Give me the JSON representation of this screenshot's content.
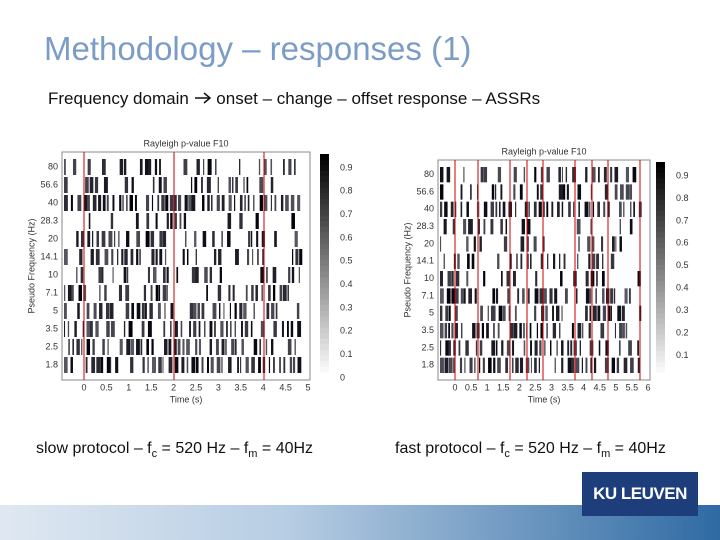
{
  "title": "Methodology – responses (1)",
  "subtitle": {
    "before": "Frequency domain",
    "after": "onset – change – offset response – ASSRs"
  },
  "figures": [
    {
      "title": "Rayleigh p-value F10",
      "ylabel": "Pseudo Frequency (Hz)",
      "xlabel": "Time (s)",
      "yticks": [
        "80",
        "56.6",
        "40",
        "28.3",
        "20",
        "14.1",
        "10",
        "7.1",
        "5",
        "3.5",
        "2.5",
        "1.8"
      ],
      "xticks": [
        "0",
        "0.5",
        "1",
        "1.5",
        "2",
        "2.5",
        "3",
        "3.5",
        "4",
        "4.5",
        "5"
      ],
      "colorbar": [
        "0.9",
        "0.8",
        "0.7",
        "0.6",
        "0.5",
        "0.4",
        "0.3",
        "0.2",
        "0.1",
        "0"
      ],
      "caption": {
        "a": "slow protocol – f",
        "sub1": "c",
        "b": " = 520 Hz – f",
        "sub2": "m",
        "c": " = 40Hz"
      }
    },
    {
      "title": "Rayleigh p-value F10",
      "ylabel": "Pseudo Frequency (Hz)",
      "xlabel": "Time (s)",
      "yticks": [
        "80",
        "56.6",
        "40",
        "28.3",
        "20",
        "14.1",
        "10",
        "7.1",
        "5",
        "3.5",
        "2.5",
        "1.8"
      ],
      "xticks": [
        "0",
        "0.5",
        "1",
        "1.5",
        "2",
        "2.5",
        "3",
        "3.5",
        "4",
        "4.5",
        "5",
        "5.5",
        "6"
      ],
      "colorbar": [
        "0.9",
        "0.8",
        "0.7",
        "0.6",
        "0.5",
        "0.4",
        "0.3",
        "0.2",
        "0.1"
      ],
      "caption": {
        "a": "fast protocol – f",
        "sub1": "c",
        "b": " = 520 Hz – f",
        "sub2": "m",
        "c": " = 40Hz"
      }
    }
  ],
  "logo": "KU LEUVEN"
}
